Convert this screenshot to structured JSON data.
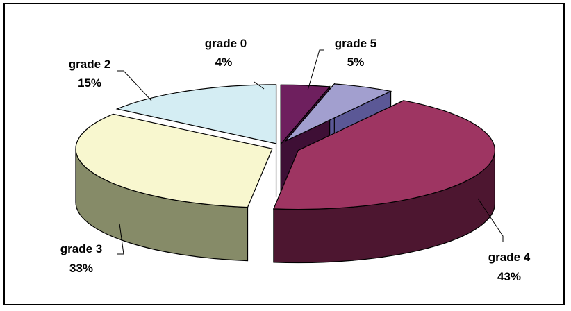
{
  "chart_data": {
    "type": "pie",
    "style": "3d-exploded",
    "title": "",
    "legend": "none",
    "slices": [
      {
        "label": "grade 0",
        "value": 4,
        "percent_label": "4%",
        "color": "#6E1F5E",
        "side_color": "#3E0F35"
      },
      {
        "label": "grade 5",
        "value": 5,
        "percent_label": "5%",
        "color": "#A29FCF",
        "side_color": "#5B5896"
      },
      {
        "label": "grade 4",
        "value": 43,
        "percent_label": "43%",
        "color": "#9E3562",
        "side_color": "#4D1630"
      },
      {
        "label": "grade 3",
        "value": 33,
        "percent_label": "33%",
        "color": "#F8F7CF",
        "side_color": "#868B68"
      },
      {
        "label": "grade 2",
        "value": 15,
        "percent_label": "15%",
        "color": "#D4EDF3",
        "side_color": "#6F9090"
      }
    ]
  }
}
